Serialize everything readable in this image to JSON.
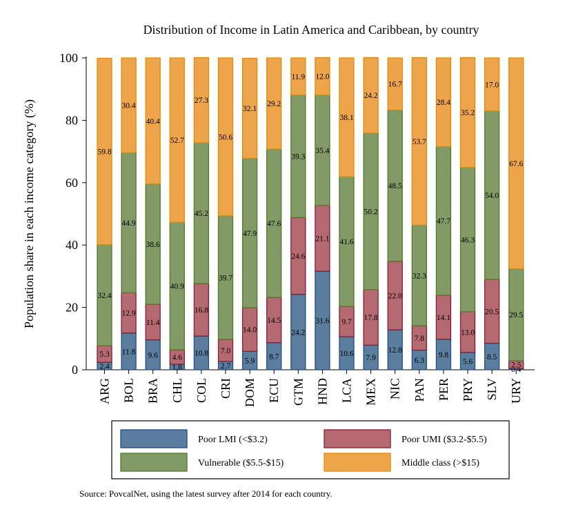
{
  "chart_data": {
    "type": "bar",
    "stacked": true,
    "title": "Distribution of Income in Latin America and Caribbean, by country",
    "ylabel": "Population share in each income category (%)",
    "xlabel": "",
    "ylim": [
      0,
      100
    ],
    "yticks": [
      0,
      20,
      40,
      60,
      80,
      100
    ],
    "grid": false,
    "legend_position": "bottom",
    "categories": [
      "ARG",
      "BOL",
      "BRA",
      "CHL",
      "COL",
      "CRI",
      "DOM",
      "ECU",
      "GTM",
      "HND",
      "LCA",
      "MEX",
      "NIC",
      "PAN",
      "PER",
      "PRY",
      "SLV",
      "URY"
    ],
    "series": [
      {
        "name": "Poor LMI (<$3.2)",
        "color": "#5b7d9e",
        "edge": "#1f4e8c",
        "values": [
          2.4,
          11.8,
          9.6,
          1.8,
          10.8,
          2.7,
          5.9,
          8.7,
          24.2,
          31.6,
          10.6,
          7.9,
          12.8,
          6.3,
          9.8,
          5.6,
          8.5,
          0.4
        ]
      },
      {
        "name": "Poor UMI ($3.2-$5.5)",
        "color": "#b56a72",
        "edge": "#8b1a2b",
        "values": [
          5.3,
          12.9,
          11.4,
          4.6,
          16.8,
          7.0,
          14.0,
          14.5,
          24.6,
          21.1,
          9.7,
          17.8,
          22.0,
          7.8,
          14.1,
          13.0,
          20.5,
          2.5
        ]
      },
      {
        "name": "Vulnerable ($5.5-$15)",
        "color": "#829a66",
        "edge": "#4f7a28",
        "values": [
          32.4,
          44.9,
          38.6,
          40.9,
          45.2,
          39.7,
          47.9,
          47.6,
          39.3,
          35.4,
          41.6,
          50.2,
          48.5,
          32.3,
          47.7,
          46.3,
          54.0,
          29.5
        ]
      },
      {
        "name": "Middle class (>$15)",
        "color": "#eda44a",
        "edge": "#e58a00",
        "values": [
          59.8,
          30.4,
          40.4,
          52.7,
          27.3,
          50.6,
          32.1,
          29.2,
          11.9,
          12.0,
          38.1,
          24.2,
          16.7,
          53.7,
          28.4,
          35.2,
          17.0,
          67.6
        ]
      }
    ],
    "source": "Source: PovcalNet, using the latest survey after 2014 for each country."
  }
}
